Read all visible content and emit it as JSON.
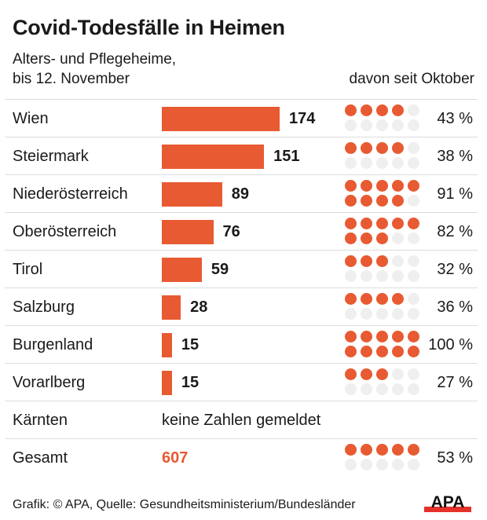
{
  "header": {
    "title": "Covid-Todesfälle in Heimen",
    "subtitle_line1": "Alters- und Pflegeheime,",
    "subtitle_line2": "bis 12. November",
    "right_header": "davon seit Oktober"
  },
  "colors": {
    "accent": "#e85a32",
    "dot_empty": "#efefef"
  },
  "chart_data": {
    "type": "bar",
    "title": "Covid-Todesfälle in Heimen",
    "subtitle": "Alters- und Pflegeheime, bis 12. November",
    "secondary_label": "davon seit Oktober",
    "categories": [
      "Wien",
      "Steiermark",
      "Niederösterreich",
      "Oberösterreich",
      "Tirol",
      "Salzburg",
      "Burgenland",
      "Vorarlberg"
    ],
    "values": [
      174,
      151,
      89,
      76,
      59,
      28,
      15,
      15
    ],
    "value_labels": [
      "174",
      "151",
      "89",
      "76",
      "59",
      "28",
      "15",
      "15"
    ],
    "share_since_october": [
      43,
      38,
      91,
      82,
      32,
      36,
      100,
      27
    ],
    "share_labels": [
      "43 %",
      "38 %",
      "91 %",
      "82 %",
      "32 %",
      "36 %",
      "100 %",
      "27 %"
    ],
    "dot_units": 10,
    "xlim": [
      0,
      174
    ],
    "no_data": {
      "label": "Kärnten",
      "note": "keine Zahlen gemeldet"
    },
    "total": {
      "label": "Gesamt",
      "value": 607,
      "value_label": "607",
      "share": 53,
      "share_label": "53 %"
    }
  },
  "footer": {
    "credit": "Grafik: © APA, Quelle: Gesundheitsministerium/Bundesländer",
    "logo_text": "APA"
  }
}
